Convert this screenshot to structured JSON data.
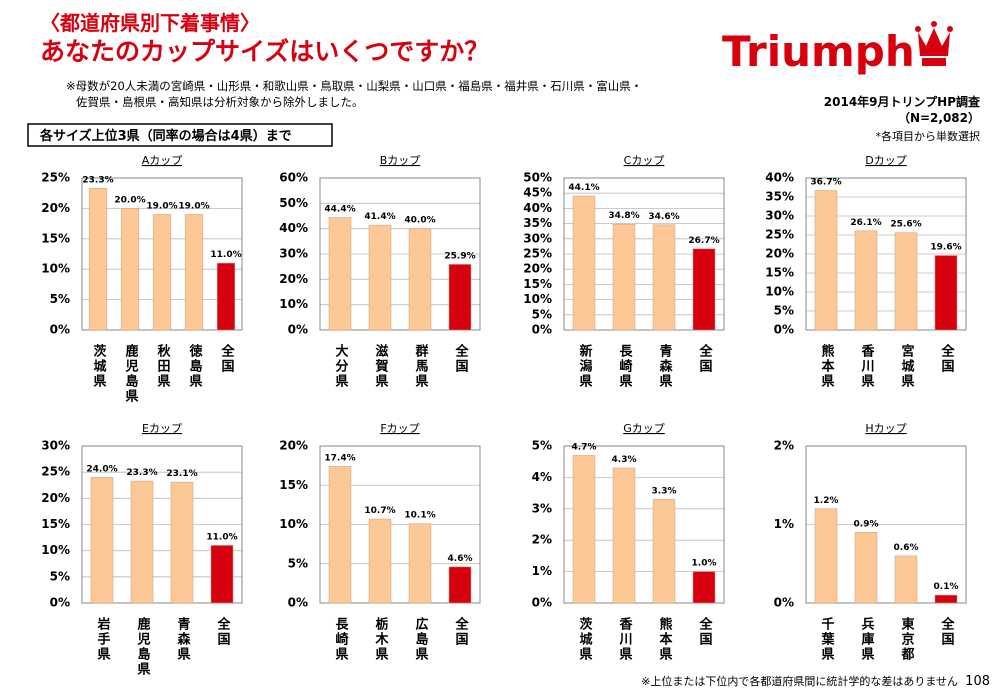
{
  "header": {
    "subtitle": "〈都道府県別下着事情〉",
    "title": "あなたのカップサイズはいくつですか？",
    "note_lines": [
      "※母数が20人未満の宮崎県・山形県・和歌山県・鳥取県・山梨県・山口県・福島県・福井県・石川県・富山県・",
      "佐賀県・島根県・高知県は分析対象から除外しました。"
    ],
    "logo": "Triumph",
    "survey": "2014年9月トリンプHP調査",
    "sample_size": "（N=2,082）",
    "selection_note": "*各項目から単数選択",
    "section_label": "各サイズ上位3県（同率の場合は4県）まで",
    "footnote": "※上位または下位内で各都道府県間に統計学的な差はありません",
    "page_number": "108"
  },
  "chart_data": [
    {
      "type": "bar",
      "title": "Aカップ",
      "categories": [
        "茨城県",
        "鹿児島県",
        "秋田県",
        "徳島県",
        "全国"
      ],
      "values": [
        23.3,
        20.0,
        19.0,
        19.0,
        11.0
      ],
      "value_labels": [
        "23.3%",
        "20.0%",
        "19.0%",
        "19.0%",
        "11.0%"
      ],
      "colors": [
        "#fbc896",
        "#fbc896",
        "#fbc896",
        "#fbc896",
        "#d7000f"
      ],
      "ylim": [
        0,
        25
      ],
      "yticks": [
        {
          "value": 0,
          "label": "0%"
        },
        {
          "value": 5,
          "label": "5%"
        },
        {
          "value": 10,
          "label": "10%"
        },
        {
          "value": 15,
          "label": "15%"
        },
        {
          "value": 20,
          "label": "20%"
        },
        {
          "value": 25,
          "label": "25%"
        }
      ],
      "grid": true
    },
    {
      "type": "bar",
      "title": "Bカップ",
      "categories": [
        "大分県",
        "滋賀県",
        "群馬県",
        "全国"
      ],
      "values": [
        44.4,
        41.4,
        40.0,
        25.9
      ],
      "value_labels": [
        "44.4%",
        "41.4%",
        "40.0%",
        "25.9%"
      ],
      "colors": [
        "#fbc896",
        "#fbc896",
        "#fbc896",
        "#d7000f"
      ],
      "ylim": [
        0,
        60
      ],
      "yticks": [
        {
          "value": 0,
          "label": "0%"
        },
        {
          "value": 10,
          "label": "10%"
        },
        {
          "value": 20,
          "label": "20%"
        },
        {
          "value": 30,
          "label": "30%"
        },
        {
          "value": 40,
          "label": "40%"
        },
        {
          "value": 50,
          "label": "50%"
        },
        {
          "value": 60,
          "label": "60%"
        }
      ],
      "grid": true
    },
    {
      "type": "bar",
      "title": "Cカップ",
      "categories": [
        "新潟県",
        "長崎県",
        "青森県",
        "全国"
      ],
      "values": [
        44.1,
        34.8,
        34.6,
        26.7
      ],
      "value_labels": [
        "44.1%",
        "34.8%",
        "34.6%",
        "26.7%"
      ],
      "colors": [
        "#fbc896",
        "#fbc896",
        "#fbc896",
        "#d7000f"
      ],
      "ylim": [
        0,
        50
      ],
      "yticks": [
        {
          "value": 0,
          "label": "0%"
        },
        {
          "value": 5,
          "label": "5%"
        },
        {
          "value": 10,
          "label": "10%"
        },
        {
          "value": 15,
          "label": "15%"
        },
        {
          "value": 20,
          "label": "20%"
        },
        {
          "value": 25,
          "label": "25%"
        },
        {
          "value": 30,
          "label": "30%"
        },
        {
          "value": 35,
          "label": "35%"
        },
        {
          "value": 40,
          "label": "40%"
        },
        {
          "value": 45,
          "label": "45%"
        },
        {
          "value": 50,
          "label": "50%"
        }
      ],
      "grid": true
    },
    {
      "type": "bar",
      "title": "Dカップ",
      "categories": [
        "熊本県",
        "香川県",
        "宮城県",
        "全国"
      ],
      "values": [
        36.7,
        26.1,
        25.6,
        19.6
      ],
      "value_labels": [
        "36.7%",
        "26.1%",
        "25.6%",
        "19.6%"
      ],
      "colors": [
        "#fbc896",
        "#fbc896",
        "#fbc896",
        "#d7000f"
      ],
      "ylim": [
        0,
        40
      ],
      "yticks": [
        {
          "value": 0,
          "label": "0%"
        },
        {
          "value": 5,
          "label": "5%"
        },
        {
          "value": 10,
          "label": "10%"
        },
        {
          "value": 15,
          "label": "15%"
        },
        {
          "value": 20,
          "label": "20%"
        },
        {
          "value": 25,
          "label": "25%"
        },
        {
          "value": 30,
          "label": "30%"
        },
        {
          "value": 35,
          "label": "35%"
        },
        {
          "value": 40,
          "label": "40%"
        }
      ],
      "grid": true
    },
    {
      "type": "bar",
      "title": "Eカップ",
      "categories": [
        "岩手県",
        "鹿児島県",
        "青森県",
        "全国"
      ],
      "values": [
        24.0,
        23.3,
        23.1,
        11.0
      ],
      "value_labels": [
        "24.0%",
        "23.3%",
        "23.1%",
        "11.0%"
      ],
      "colors": [
        "#fbc896",
        "#fbc896",
        "#fbc896",
        "#d7000f"
      ],
      "ylim": [
        0,
        30
      ],
      "yticks": [
        {
          "value": 0,
          "label": "0%"
        },
        {
          "value": 5,
          "label": "5%"
        },
        {
          "value": 10,
          "label": "10%"
        },
        {
          "value": 15,
          "label": "15%"
        },
        {
          "value": 20,
          "label": "20%"
        },
        {
          "value": 25,
          "label": "25%"
        },
        {
          "value": 30,
          "label": "30%"
        }
      ],
      "grid": true
    },
    {
      "type": "bar",
      "title": "Fカップ",
      "categories": [
        "長崎県",
        "栃木県",
        "広島県",
        "全国"
      ],
      "values": [
        17.4,
        10.7,
        10.1,
        4.6
      ],
      "value_labels": [
        "17.4%",
        "10.7%",
        "10.1%",
        "4.6%"
      ],
      "colors": [
        "#fbc896",
        "#fbc896",
        "#fbc896",
        "#d7000f"
      ],
      "ylim": [
        0,
        20
      ],
      "yticks": [
        {
          "value": 0,
          "label": "0%"
        },
        {
          "value": 5,
          "label": "5%"
        },
        {
          "value": 10,
          "label": "10%"
        },
        {
          "value": 15,
          "label": "15%"
        },
        {
          "value": 20,
          "label": "20%"
        }
      ],
      "grid": true
    },
    {
      "type": "bar",
      "title": "Gカップ",
      "categories": [
        "茨城県",
        "香川県",
        "熊本県",
        "全国"
      ],
      "values": [
        4.7,
        4.3,
        3.3,
        1.0
      ],
      "value_labels": [
        "4.7%",
        "4.3%",
        "3.3%",
        "1.0%"
      ],
      "colors": [
        "#fbc896",
        "#fbc896",
        "#fbc896",
        "#d7000f"
      ],
      "ylim": [
        0,
        5
      ],
      "yticks": [
        {
          "value": 0,
          "label": "0%"
        },
        {
          "value": 1,
          "label": "1%"
        },
        {
          "value": 2,
          "label": "2%"
        },
        {
          "value": 3,
          "label": "3%"
        },
        {
          "value": 4,
          "label": "4%"
        },
        {
          "value": 5,
          "label": "5%"
        }
      ],
      "grid": true
    },
    {
      "type": "bar",
      "title": "Hカップ",
      "categories": [
        "千葉県",
        "兵庫県",
        "東京都",
        "全国"
      ],
      "values": [
        1.2,
        0.9,
        0.6,
        0.1
      ],
      "value_labels": [
        "1.2%",
        "0.9%",
        "0.6%",
        "0.1%"
      ],
      "colors": [
        "#fbc896",
        "#fbc896",
        "#fbc896",
        "#d7000f"
      ],
      "ylim": [
        0,
        2
      ],
      "yticks": [
        {
          "value": 0,
          "label": "0%"
        },
        {
          "value": 1,
          "label": "1%"
        },
        {
          "value": 2,
          "label": "2%"
        }
      ],
      "grid": true
    }
  ]
}
